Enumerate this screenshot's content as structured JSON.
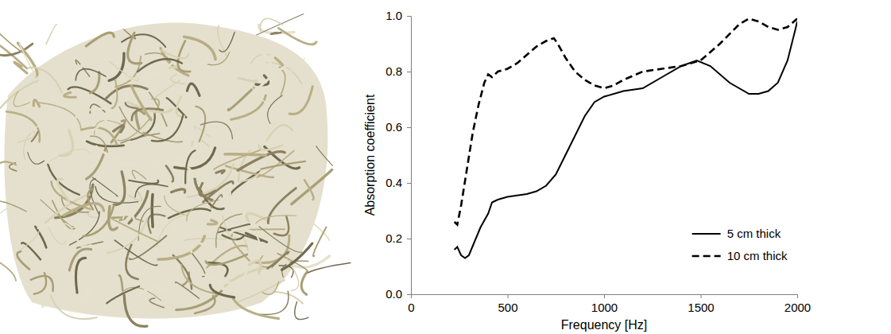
{
  "chart_data": {
    "type": "line",
    "x_label": "Frequency [Hz]",
    "y_label": "Absorption coefficient",
    "xlim": [
      0,
      2000
    ],
    "xticks": [
      0,
      500,
      1000,
      1500,
      2000
    ],
    "ylim": [
      0,
      1
    ],
    "yticks": [
      {
        "value": 0,
        "label": "0.0"
      },
      0.2,
      0.4,
      0.6,
      0.8,
      {
        "value": 1,
        "label": "1.0"
      }
    ],
    "grid": false,
    "legend": "lower right",
    "series": [
      {
        "name": "5 cm thick",
        "color": "#000000",
        "line_style": "solid",
        "x": [
          225,
          240,
          260,
          280,
          300,
          330,
          360,
          400,
          420,
          450,
          500,
          600,
          650,
          700,
          750,
          800,
          850,
          900,
          950,
          1000,
          1100,
          1200,
          1300,
          1400,
          1480,
          1550,
          1650,
          1750,
          1800,
          1850,
          1900,
          1950,
          1990,
          2000
        ],
        "values": [
          0.16,
          0.17,
          0.14,
          0.13,
          0.14,
          0.19,
          0.24,
          0.29,
          0.33,
          0.34,
          0.35,
          0.36,
          0.37,
          0.39,
          0.43,
          0.5,
          0.57,
          0.64,
          0.69,
          0.71,
          0.73,
          0.74,
          0.78,
          0.82,
          0.84,
          0.82,
          0.76,
          0.72,
          0.72,
          0.73,
          0.76,
          0.84,
          0.95,
          0.98
        ]
      },
      {
        "name": "10 cm thick",
        "color": "#000000",
        "line_style": "dashed",
        "x": [
          225,
          240,
          260,
          290,
          320,
          350,
          380,
          400,
          420,
          450,
          500,
          550,
          600,
          650,
          700,
          740,
          760,
          800,
          850,
          900,
          950,
          1000,
          1050,
          1100,
          1200,
          1300,
          1400,
          1500,
          1600,
          1700,
          1750,
          1800,
          1850,
          1900,
          1950,
          2000
        ],
        "values": [
          0.26,
          0.25,
          0.32,
          0.45,
          0.58,
          0.68,
          0.76,
          0.79,
          0.78,
          0.8,
          0.81,
          0.83,
          0.86,
          0.89,
          0.91,
          0.92,
          0.9,
          0.85,
          0.8,
          0.77,
          0.75,
          0.74,
          0.75,
          0.77,
          0.8,
          0.81,
          0.82,
          0.84,
          0.9,
          0.97,
          0.99,
          0.98,
          0.96,
          0.95,
          0.96,
          0.99
        ]
      }
    ]
  }
}
